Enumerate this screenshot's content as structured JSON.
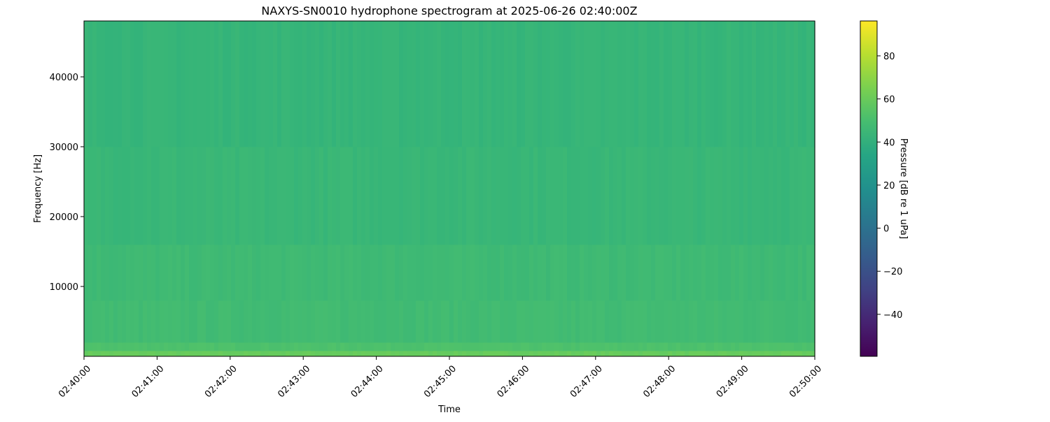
{
  "chart_data": {
    "type": "heatmap",
    "title": "NAXYS-SN0010 hydrophone spectrogram at 2025-06-26 02:40:00Z",
    "xlabel": "Time",
    "ylabel": "Frequency [Hz]",
    "colorbar_label": "Pressure [dB re 1 uPa]",
    "colormap": "viridis",
    "xlim": [
      "02:40:00",
      "02:50:00"
    ],
    "ylim": [
      0,
      48000
    ],
    "clim": [
      -59.5,
      96.2
    ],
    "x_ticks": [
      "02:40:00",
      "02:41:00",
      "02:42:00",
      "02:43:00",
      "02:44:00",
      "02:45:00",
      "02:46:00",
      "02:47:00",
      "02:48:00",
      "02:49:00",
      "02:50:00"
    ],
    "y_ticks": [
      10000,
      20000,
      30000,
      40000
    ],
    "y_tick_labels": [
      "10000",
      "20000",
      "30000",
      "40000"
    ],
    "colorbar_ticks": [
      -40,
      -20,
      0,
      20,
      40,
      60,
      80
    ],
    "colorbar_tick_labels": [
      "−40",
      "−20",
      "0",
      "20",
      "40",
      "60",
      "80"
    ],
    "bands": [
      {
        "f_low": 0,
        "f_high": 800,
        "level_db": 60
      },
      {
        "f_low": 800,
        "f_high": 2000,
        "level_db": 52
      },
      {
        "f_low": 2000,
        "f_high": 8000,
        "level_db": 48
      },
      {
        "f_low": 8000,
        "f_high": 16000,
        "level_db": 47
      },
      {
        "f_low": 16000,
        "f_high": 30000,
        "level_db": 45
      },
      {
        "f_low": 30000,
        "f_high": 48000,
        "level_db": 44
      }
    ],
    "grid": false
  }
}
